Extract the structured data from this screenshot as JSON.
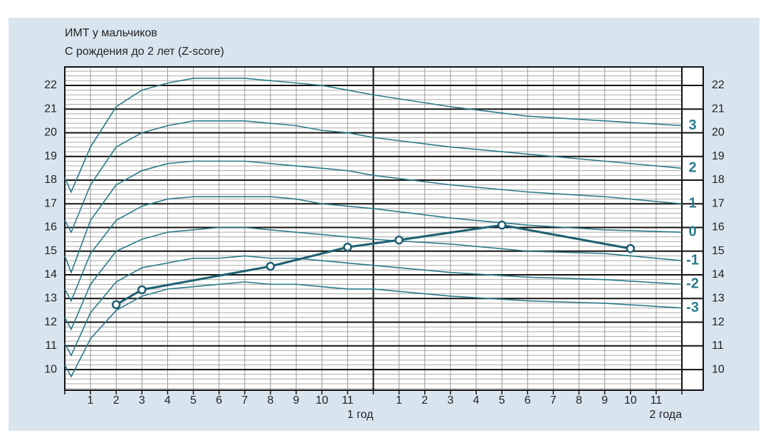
{
  "chart_data": {
    "type": "line",
    "title": "ИМТ у мальчиков",
    "subtitle": "С рождения до 2 лет (Z-score)",
    "x": [
      0,
      0.25,
      1,
      2,
      3,
      4,
      5,
      6,
      7,
      8,
      9,
      10,
      11,
      12,
      15,
      18,
      21,
      24
    ],
    "series": [
      {
        "name": "3",
        "color": "#2a7b8a",
        "values": [
          18.1,
          17.5,
          19.4,
          21.1,
          21.8,
          22.1,
          22.3,
          22.3,
          22.3,
          22.2,
          22.1,
          22.0,
          21.8,
          21.6,
          21.1,
          20.7,
          20.5,
          20.3
        ]
      },
      {
        "name": "2",
        "color": "#2a7b8a",
        "values": [
          16.3,
          15.8,
          17.8,
          19.4,
          20.0,
          20.3,
          20.5,
          20.5,
          20.5,
          20.4,
          20.3,
          20.1,
          20.0,
          19.8,
          19.4,
          19.1,
          18.8,
          18.5
        ]
      },
      {
        "name": "1",
        "color": "#2a7b8a",
        "values": [
          14.8,
          14.1,
          16.3,
          17.8,
          18.4,
          18.7,
          18.8,
          18.8,
          18.8,
          18.7,
          18.6,
          18.5,
          18.4,
          18.2,
          17.8,
          17.5,
          17.3,
          17.0
        ]
      },
      {
        "name": "0",
        "color": "#2a7b8a",
        "values": [
          13.4,
          12.9,
          14.9,
          16.3,
          16.9,
          17.2,
          17.3,
          17.3,
          17.3,
          17.3,
          17.2,
          17.0,
          16.9,
          16.8,
          16.4,
          16.1,
          15.9,
          15.8
        ]
      },
      {
        "name": "-1",
        "color": "#2a7b8a",
        "values": [
          12.2,
          11.7,
          13.6,
          15.0,
          15.5,
          15.8,
          15.9,
          16.0,
          16.0,
          15.9,
          15.8,
          15.7,
          15.6,
          15.5,
          15.3,
          15.0,
          14.9,
          14.6
        ]
      },
      {
        "name": "-2",
        "color": "#2a7b8a",
        "values": [
          11.1,
          10.6,
          12.4,
          13.7,
          14.3,
          14.5,
          14.7,
          14.7,
          14.8,
          14.7,
          14.7,
          14.6,
          14.5,
          14.4,
          14.1,
          13.9,
          13.8,
          13.6
        ]
      },
      {
        "name": "-3",
        "color": "#2a7b8a",
        "values": [
          10.2,
          9.7,
          11.3,
          12.5,
          13.1,
          13.4,
          13.5,
          13.6,
          13.7,
          13.6,
          13.6,
          13.5,
          13.4,
          13.4,
          13.1,
          12.9,
          12.8,
          12.6
        ]
      }
    ],
    "points": {
      "color": "#1d5f73",
      "x": [
        2,
        3,
        8,
        11,
        13,
        17,
        22
      ],
      "values": [
        12.74,
        13.37,
        14.36,
        15.17,
        15.47,
        16.1,
        15.11
      ]
    },
    "xlim": [
      0,
      24
    ],
    "xticks": [
      1,
      2,
      3,
      4,
      5,
      6,
      7,
      8,
      9,
      10,
      11,
      {
        "value": 12,
        "label": "1 год"
      },
      {
        "value": 13,
        "label": "1"
      },
      {
        "value": 14,
        "label": "2"
      },
      {
        "value": 15,
        "label": "3"
      },
      {
        "value": 16,
        "label": "4"
      },
      {
        "value": 17,
        "label": "5"
      },
      {
        "value": 18,
        "label": "6"
      },
      {
        "value": 19,
        "label": "7"
      },
      {
        "value": 20,
        "label": "8"
      },
      {
        "value": 21,
        "label": "9"
      },
      {
        "value": 22,
        "label": "10"
      },
      {
        "value": 23,
        "label": "11"
      },
      {
        "value": 24,
        "label": "2 года"
      }
    ],
    "ylim": [
      9.13,
      22.78
    ],
    "yticks": [
      10,
      11,
      12,
      13,
      14,
      15,
      16,
      17,
      18,
      19,
      20,
      21,
      22
    ],
    "grid": true
  }
}
